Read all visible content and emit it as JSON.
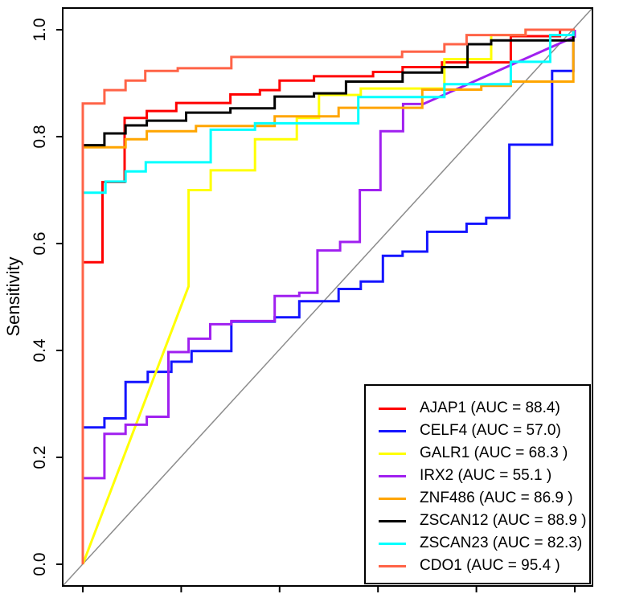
{
  "figure": {
    "background": "#ffffff",
    "axis_color": "#000000",
    "diagonal_color": "#8c8c8c"
  },
  "chart_data": {
    "type": "line",
    "subtype": "roc-step-curves",
    "title": "",
    "xlabel": "",
    "ylabel": "Sensitivity",
    "grid": false,
    "x_axis": {
      "range": [
        0,
        1
      ],
      "ticks": [
        0,
        0.2,
        0.4,
        0.6,
        0.8,
        1.0
      ],
      "tick_labels": [],
      "tick_labels_visible": false,
      "note": "x tick labels are cropped out of the screenshot; only tick marks visible"
    },
    "y_axis": {
      "range": [
        0,
        1
      ],
      "ticks": [
        0,
        0.2,
        0.4,
        0.6,
        0.8,
        1.0
      ],
      "tick_labels": [
        "0.0",
        "0.2",
        "0.4",
        "0.6",
        "0.8",
        "1.0"
      ],
      "tick_labels_visible": true,
      "label_rotation_deg": -90
    },
    "diagonal_reference_line": true,
    "legend": {
      "position": "bottom-right",
      "border": true
    },
    "series": [
      {
        "name": "AJAP1",
        "auc": 88.4,
        "label": "AJAP1 (AUC = 88.4)",
        "color": "#FF0000",
        "points": [
          [
            0,
            0
          ],
          [
            0,
            0.565
          ],
          [
            0.04,
            0.565
          ],
          [
            0.04,
            0.715
          ],
          [
            0.085,
            0.715
          ],
          [
            0.085,
            0.835
          ],
          [
            0.13,
            0.835
          ],
          [
            0.13,
            0.848
          ],
          [
            0.19,
            0.848
          ],
          [
            0.19,
            0.863
          ],
          [
            0.3,
            0.863
          ],
          [
            0.3,
            0.879
          ],
          [
            0.36,
            0.879
          ],
          [
            0.36,
            0.887
          ],
          [
            0.4,
            0.887
          ],
          [
            0.4,
            0.905
          ],
          [
            0.47,
            0.905
          ],
          [
            0.47,
            0.913
          ],
          [
            0.59,
            0.913
          ],
          [
            0.59,
            0.921
          ],
          [
            0.65,
            0.921
          ],
          [
            0.65,
            0.93
          ],
          [
            0.73,
            0.93
          ],
          [
            0.73,
            0.939
          ],
          [
            0.87,
            0.939
          ],
          [
            0.87,
            0.988
          ],
          [
            0.97,
            0.988
          ],
          [
            0.97,
            1
          ],
          [
            1,
            1
          ]
        ]
      },
      {
        "name": "CELF4",
        "auc": 57.0,
        "label": "CELF4 (AUC = 57.0)",
        "color": "#1414FF",
        "points": [
          [
            0,
            0
          ],
          [
            0,
            0.256
          ],
          [
            0.044,
            0.256
          ],
          [
            0.044,
            0.273
          ],
          [
            0.087,
            0.273
          ],
          [
            0.087,
            0.341
          ],
          [
            0.132,
            0.341
          ],
          [
            0.132,
            0.36
          ],
          [
            0.18,
            0.36
          ],
          [
            0.18,
            0.379
          ],
          [
            0.221,
            0.379
          ],
          [
            0.221,
            0.399
          ],
          [
            0.302,
            0.399
          ],
          [
            0.302,
            0.454
          ],
          [
            0.39,
            0.454
          ],
          [
            0.39,
            0.462
          ],
          [
            0.44,
            0.462
          ],
          [
            0.44,
            0.492
          ],
          [
            0.52,
            0.492
          ],
          [
            0.52,
            0.515
          ],
          [
            0.565,
            0.515
          ],
          [
            0.565,
            0.529
          ],
          [
            0.61,
            0.529
          ],
          [
            0.61,
            0.577
          ],
          [
            0.65,
            0.577
          ],
          [
            0.65,
            0.585
          ],
          [
            0.7,
            0.585
          ],
          [
            0.7,
            0.622
          ],
          [
            0.78,
            0.622
          ],
          [
            0.78,
            0.637
          ],
          [
            0.82,
            0.637
          ],
          [
            0.82,
            0.648
          ],
          [
            0.867,
            0.648
          ],
          [
            0.867,
            0.785
          ],
          [
            0.954,
            0.785
          ],
          [
            0.954,
            0.923
          ],
          [
            0.997,
            0.923
          ],
          [
            0.997,
            1
          ],
          [
            1,
            1
          ]
        ]
      },
      {
        "name": "GALR1",
        "auc": 68.3,
        "label": "GALR1 (AUC = 68.3 )",
        "color": "#FFFF00",
        "points": [
          [
            0,
            0
          ],
          [
            0.215,
            0.52
          ],
          [
            0.215,
            0.7
          ],
          [
            0.26,
            0.7
          ],
          [
            0.26,
            0.737
          ],
          [
            0.35,
            0.737
          ],
          [
            0.35,
            0.795
          ],
          [
            0.435,
            0.795
          ],
          [
            0.435,
            0.835
          ],
          [
            0.48,
            0.835
          ],
          [
            0.48,
            0.878
          ],
          [
            0.565,
            0.878
          ],
          [
            0.565,
            0.89
          ],
          [
            0.735,
            0.89
          ],
          [
            0.735,
            0.945
          ],
          [
            0.83,
            0.945
          ],
          [
            0.83,
            0.99
          ],
          [
            0.9,
            0.99
          ],
          [
            0.9,
            1
          ],
          [
            1,
            1
          ]
        ]
      },
      {
        "name": "IRX2",
        "auc": 55.1,
        "label": "IRX2 (AUC = 55.1 )",
        "color": "#A020F0",
        "points": [
          [
            0,
            0
          ],
          [
            0,
            0.161
          ],
          [
            0.044,
            0.161
          ],
          [
            0.044,
            0.244
          ],
          [
            0.087,
            0.244
          ],
          [
            0.087,
            0.261
          ],
          [
            0.13,
            0.261
          ],
          [
            0.13,
            0.276
          ],
          [
            0.174,
            0.276
          ],
          [
            0.174,
            0.397
          ],
          [
            0.215,
            0.397
          ],
          [
            0.215,
            0.422
          ],
          [
            0.259,
            0.422
          ],
          [
            0.259,
            0.449
          ],
          [
            0.302,
            0.449
          ],
          [
            0.302,
            0.455
          ],
          [
            0.39,
            0.455
          ],
          [
            0.39,
            0.502
          ],
          [
            0.44,
            0.502
          ],
          [
            0.44,
            0.508
          ],
          [
            0.477,
            0.508
          ],
          [
            0.477,
            0.587
          ],
          [
            0.523,
            0.587
          ],
          [
            0.523,
            0.603
          ],
          [
            0.563,
            0.603
          ],
          [
            0.563,
            0.7
          ],
          [
            0.605,
            0.7
          ],
          [
            0.605,
            0.81
          ],
          [
            0.651,
            0.81
          ],
          [
            0.651,
            0.861
          ],
          [
            0.692,
            0.861
          ],
          [
            1,
            0.987
          ],
          [
            1,
            1
          ]
        ]
      },
      {
        "name": "ZNF486",
        "auc": 86.9,
        "label": "ZNF486 (AUC = 86.9 )",
        "color": "#FFA500",
        "points": [
          [
            0,
            0
          ],
          [
            0,
            0.78
          ],
          [
            0.087,
            0.78
          ],
          [
            0.087,
            0.795
          ],
          [
            0.13,
            0.795
          ],
          [
            0.13,
            0.81
          ],
          [
            0.23,
            0.81
          ],
          [
            0.23,
            0.82
          ],
          [
            0.39,
            0.82
          ],
          [
            0.39,
            0.838
          ],
          [
            0.52,
            0.838
          ],
          [
            0.52,
            0.854
          ],
          [
            0.69,
            0.854
          ],
          [
            0.69,
            0.888
          ],
          [
            0.81,
            0.888
          ],
          [
            0.81,
            0.895
          ],
          [
            0.87,
            0.895
          ],
          [
            0.87,
            0.903
          ],
          [
            0.997,
            0.903
          ],
          [
            0.997,
            1
          ],
          [
            1,
            1
          ]
        ]
      },
      {
        "name": "ZSCAN12",
        "auc": 88.9,
        "label": "ZSCAN12 (AUC = 88.9 )",
        "color": "#000000",
        "points": [
          [
            0,
            0
          ],
          [
            0,
            0.784
          ],
          [
            0.044,
            0.784
          ],
          [
            0.044,
            0.806
          ],
          [
            0.087,
            0.806
          ],
          [
            0.087,
            0.821
          ],
          [
            0.13,
            0.821
          ],
          [
            0.13,
            0.83
          ],
          [
            0.21,
            0.83
          ],
          [
            0.21,
            0.845
          ],
          [
            0.3,
            0.845
          ],
          [
            0.3,
            0.853
          ],
          [
            0.39,
            0.853
          ],
          [
            0.39,
            0.875
          ],
          [
            0.47,
            0.875
          ],
          [
            0.47,
            0.881
          ],
          [
            0.535,
            0.881
          ],
          [
            0.535,
            0.903
          ],
          [
            0.65,
            0.903
          ],
          [
            0.65,
            0.92
          ],
          [
            0.73,
            0.92
          ],
          [
            0.73,
            0.93
          ],
          [
            0.782,
            0.93
          ],
          [
            0.782,
            0.973
          ],
          [
            0.83,
            0.973
          ],
          [
            0.83,
            0.98
          ],
          [
            0.997,
            0.98
          ],
          [
            0.997,
            1
          ],
          [
            1,
            1
          ]
        ]
      },
      {
        "name": "ZSCAN23",
        "auc": 82.3,
        "label": "ZSCAN23 (AUC = 82.3)",
        "color": "#00FFFF",
        "points": [
          [
            0,
            0
          ],
          [
            0,
            0.695
          ],
          [
            0.046,
            0.695
          ],
          [
            0.046,
            0.716
          ],
          [
            0.087,
            0.716
          ],
          [
            0.087,
            0.735
          ],
          [
            0.128,
            0.735
          ],
          [
            0.128,
            0.752
          ],
          [
            0.26,
            0.752
          ],
          [
            0.26,
            0.813
          ],
          [
            0.35,
            0.813
          ],
          [
            0.35,
            0.825
          ],
          [
            0.56,
            0.825
          ],
          [
            0.56,
            0.874
          ],
          [
            0.735,
            0.874
          ],
          [
            0.735,
            0.898
          ],
          [
            0.87,
            0.898
          ],
          [
            0.87,
            0.94
          ],
          [
            0.95,
            0.94
          ],
          [
            0.95,
            0.99
          ],
          [
            0.997,
            0.99
          ],
          [
            0.997,
            1
          ],
          [
            1,
            1
          ]
        ]
      },
      {
        "name": "CDO1",
        "auc": 95.4,
        "label": "CDO1 (AUC = 95.4 )",
        "color": "#FF6347",
        "points": [
          [
            0,
            0
          ],
          [
            0,
            0.862
          ],
          [
            0.044,
            0.862
          ],
          [
            0.044,
            0.887
          ],
          [
            0.087,
            0.887
          ],
          [
            0.087,
            0.905
          ],
          [
            0.127,
            0.905
          ],
          [
            0.127,
            0.923
          ],
          [
            0.193,
            0.923
          ],
          [
            0.193,
            0.928
          ],
          [
            0.302,
            0.928
          ],
          [
            0.302,
            0.949
          ],
          [
            0.649,
            0.949
          ],
          [
            0.649,
            0.959
          ],
          [
            0.735,
            0.959
          ],
          [
            0.735,
            0.973
          ],
          [
            0.78,
            0.973
          ],
          [
            0.78,
            0.99
          ],
          [
            0.9,
            0.99
          ],
          [
            0.9,
            1
          ],
          [
            1,
            1
          ]
        ]
      }
    ]
  }
}
